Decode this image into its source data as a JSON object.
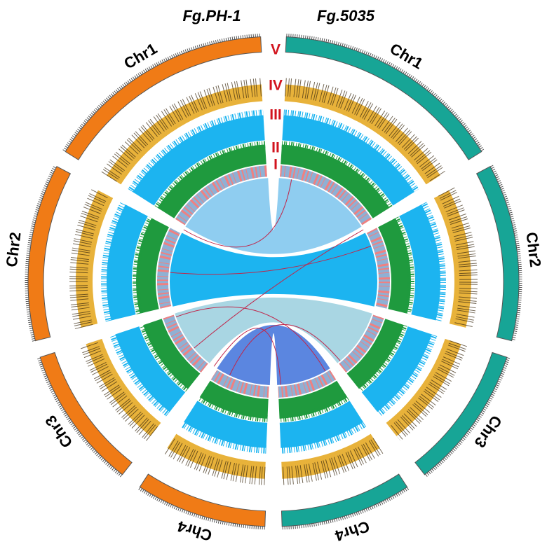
{
  "header": {
    "left_genome": "Fg.PH-1",
    "right_genome": "Fg.5035"
  },
  "left_chromosomes": [
    "Chr1",
    "Chr2",
    "Chr3",
    "Chr4"
  ],
  "right_chromosomes": [
    "Chr1",
    "Chr2",
    "Chr3",
    "Chr4"
  ],
  "ring_labels": [
    "V",
    "IV",
    "III",
    "II",
    "I"
  ]
}
